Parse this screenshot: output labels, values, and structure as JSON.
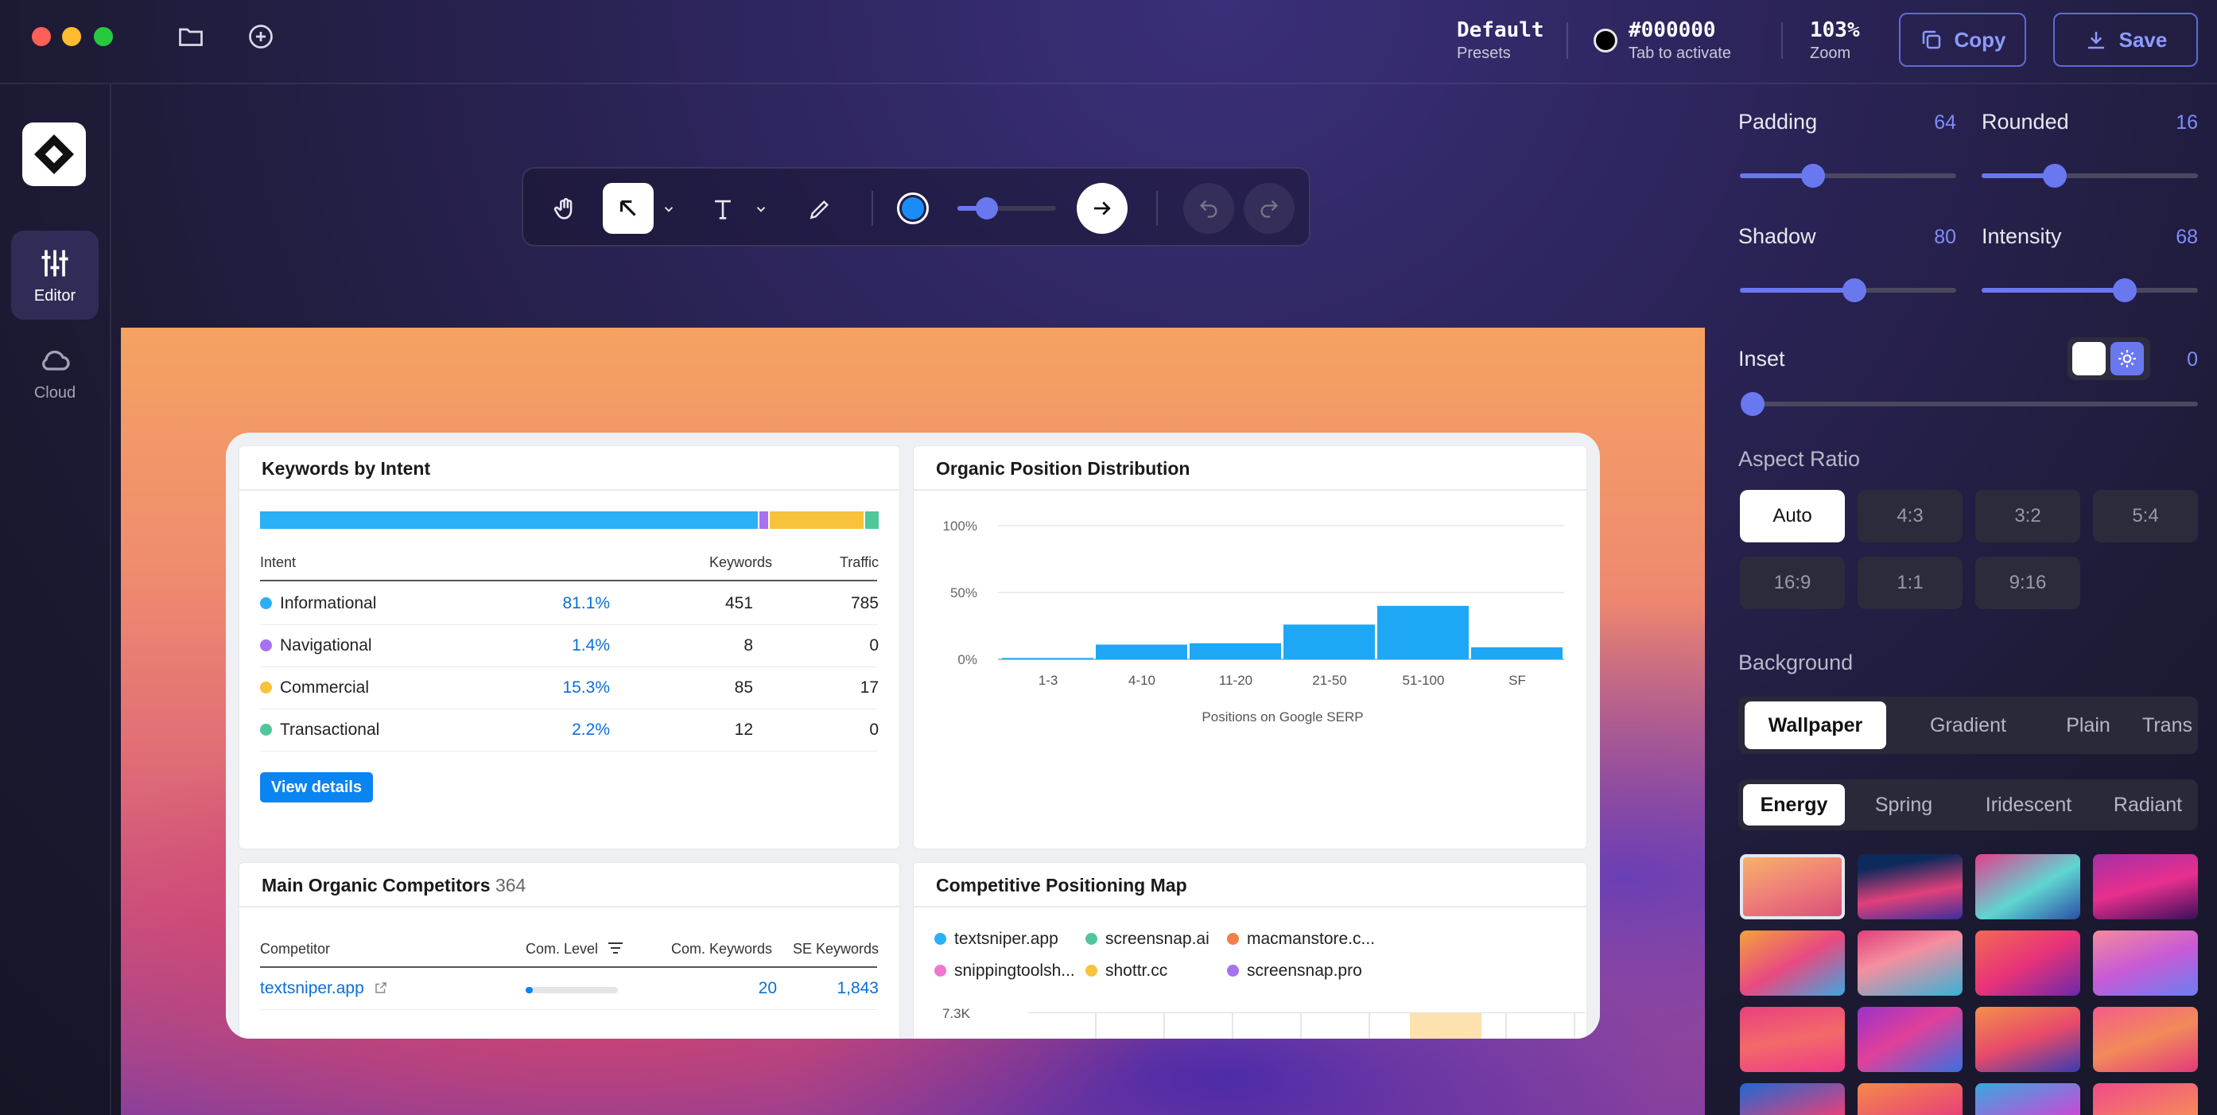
{
  "titlebar": {
    "preset": {
      "main": "Default",
      "sub": "Presets"
    },
    "color": {
      "main": "#000000",
      "sub": "Tab to activate"
    },
    "zoom": {
      "main": "103%",
      "sub": "Zoom"
    },
    "copy_label": "Copy",
    "save_label": "Save"
  },
  "rail": {
    "items": [
      {
        "label": "Editor",
        "icon": "sliders-icon"
      },
      {
        "label": "Cloud",
        "icon": "cloud-icon"
      }
    ]
  },
  "toolbar": {
    "color": "#1a8cf5",
    "stroke_level": 0.3
  },
  "dashboard": {
    "intent": {
      "title": "Keywords by Intent",
      "bar": [
        {
          "share": 81.1,
          "color": "#2ab0f5"
        },
        {
          "share": 1.4,
          "color": "#a672f0"
        },
        {
          "share": 15.3,
          "color": "#f7c23c"
        },
        {
          "share": 2.2,
          "color": "#4fc79a"
        }
      ],
      "headers": {
        "intent": "Intent",
        "keywords": "Keywords",
        "traffic": "Traffic"
      },
      "rows": [
        {
          "name": "Informational",
          "pct": "81.1%",
          "keywords": "451",
          "traffic": "785",
          "color": "#2ab0f5"
        },
        {
          "name": "Navigational",
          "pct": "1.4%",
          "keywords": "8",
          "traffic": "0",
          "color": "#a672f0"
        },
        {
          "name": "Commercial",
          "pct": "15.3%",
          "keywords": "85",
          "traffic": "17",
          "color": "#f7c23c"
        },
        {
          "name": "Transactional",
          "pct": "2.2%",
          "keywords": "12",
          "traffic": "0",
          "color": "#4fc79a"
        }
      ],
      "button": "View details"
    },
    "distribution": {
      "title": "Organic Position Distribution"
    },
    "competitors": {
      "title": "Main Organic Competitors",
      "count": "364",
      "headers": {
        "competitor": "Competitor",
        "level": "Com. Level",
        "keywords": "Com. Keywords",
        "se": "SE Keywords"
      },
      "rows": [
        {
          "name": "textsniper.app",
          "level": 0.08,
          "keywords": "20",
          "se": "1,843"
        }
      ]
    },
    "positioning": {
      "title": "Competitive Positioning Map",
      "legend": [
        {
          "name": "textsniper.app",
          "color": "#2ab0f5"
        },
        {
          "name": "screensnap.ai",
          "color": "#4fc79a"
        },
        {
          "name": "macmanstore.c...",
          "color": "#f57d4a"
        },
        {
          "name": "snippingtoolsh...",
          "color": "#ef78d0"
        },
        {
          "name": "shottr.cc",
          "color": "#f7c23c"
        },
        {
          "name": "screensnap.pro",
          "color": "#a672f0"
        }
      ],
      "y_tick": "7.3K"
    }
  },
  "chart_data": {
    "type": "bar",
    "title": "Organic Position Distribution",
    "categories": [
      "1-3",
      "4-10",
      "11-20",
      "21-50",
      "51-100",
      "SF"
    ],
    "values": [
      1,
      11,
      12,
      26,
      40,
      9
    ],
    "ylim": [
      0,
      100
    ],
    "yticks": [
      "100%",
      "50%",
      "0%"
    ],
    "xlabel": "Positions on Google SERP",
    "ylabel": "",
    "grid": true,
    "color": "#1ea7f5"
  },
  "settings": {
    "padding": {
      "label": "Padding",
      "value": "64",
      "level": 0.34
    },
    "rounded": {
      "label": "Rounded",
      "value": "16",
      "level": 0.34
    },
    "shadow": {
      "label": "Shadow",
      "value": "80",
      "level": 0.53
    },
    "intensity": {
      "label": "Intensity",
      "value": "68",
      "level": 0.66
    },
    "inset": {
      "label": "Inset",
      "value": "0",
      "level": 0
    },
    "aspect": {
      "label": "Aspect Ratio",
      "options": [
        "Auto",
        "4:3",
        "3:2",
        "5:4",
        "16:9",
        "1:1",
        "9:16"
      ],
      "selected": "Auto"
    },
    "background": {
      "label": "Background",
      "tabs": [
        "Wallpaper",
        "Gradient",
        "Plain",
        "Trans"
      ],
      "selected": "Wallpaper",
      "sub_tabs": [
        "Energy",
        "Spring",
        "Iridescent",
        "Radiant"
      ],
      "sub_selected": "Energy"
    }
  }
}
